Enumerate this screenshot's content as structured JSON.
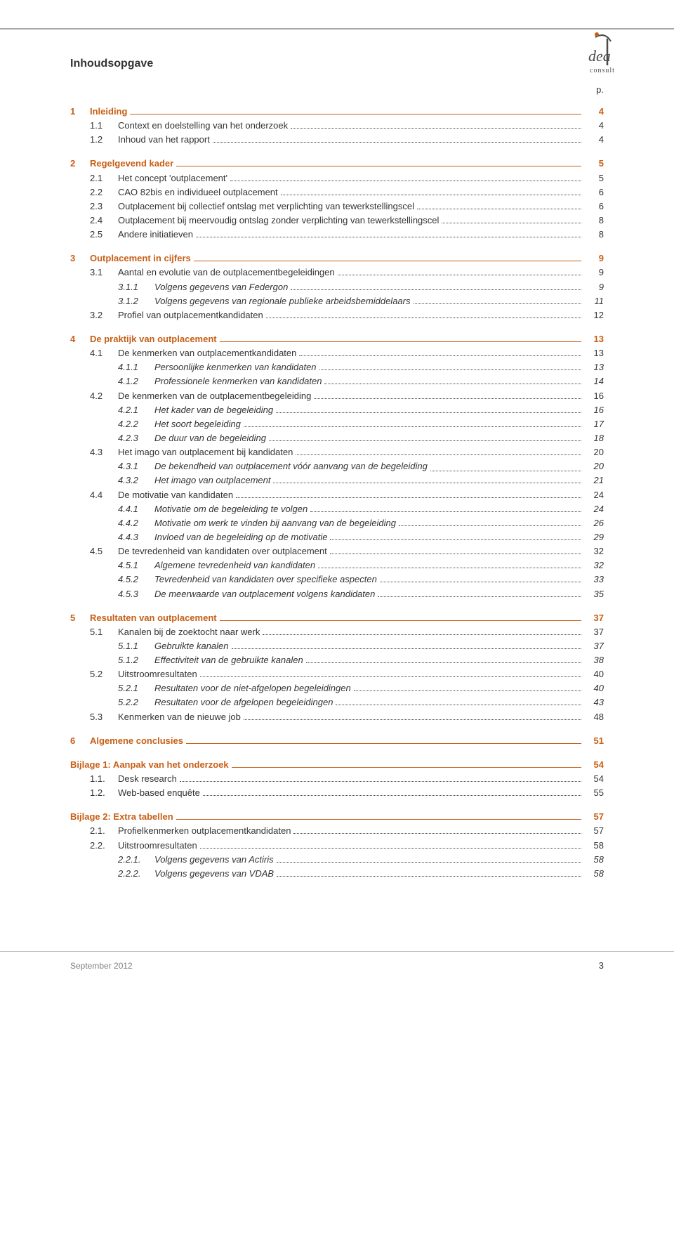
{
  "logo": {
    "brand_top": "dea",
    "brand_bottom": "consult"
  },
  "title": "Inhoudsopgave",
  "page_label": "p.",
  "colors": {
    "accent": "#c75f16",
    "text": "#333333",
    "footer_grey": "#808080",
    "rule_grey": "#a8a8a8"
  },
  "toc": [
    {
      "level": 1,
      "num": "1",
      "text": "Inleiding",
      "page": "4",
      "leader": "line"
    },
    {
      "level": 2,
      "num": "1.1",
      "text": "Context en doelstelling van het onderzoek",
      "page": "4"
    },
    {
      "level": 2,
      "num": "1.2",
      "text": "Inhoud van het rapport",
      "page": "4"
    },
    {
      "level": 1,
      "num": "2",
      "text": "Regelgevend kader",
      "page": "5",
      "leader": "line"
    },
    {
      "level": 2,
      "num": "2.1",
      "text": "Het concept 'outplacement'",
      "page": "5"
    },
    {
      "level": 2,
      "num": "2.2",
      "text": "CAO 82bis en individueel outplacement",
      "page": "6"
    },
    {
      "level": 2,
      "num": "2.3",
      "text": "Outplacement bij collectief ontslag met verplichting van tewerkstellingscel",
      "page": "6"
    },
    {
      "level": 2,
      "num": "2.4",
      "text": "Outplacement bij meervoudig ontslag zonder verplichting van tewerkstellingscel",
      "page": "8"
    },
    {
      "level": 2,
      "num": "2.5",
      "text": "Andere initiatieven",
      "page": "8"
    },
    {
      "level": 1,
      "num": "3",
      "text": "Outplacement in cijfers",
      "page": "9",
      "leader": "line"
    },
    {
      "level": 2,
      "num": "3.1",
      "text": "Aantal en evolutie van de outplacementbegeleidingen",
      "page": "9"
    },
    {
      "level": 3,
      "num": "3.1.1",
      "text": "Volgens gegevens van Federgon",
      "page": "9"
    },
    {
      "level": 3,
      "num": "3.1.2",
      "text": "Volgens gegevens van regionale publieke arbeidsbemiddelaars",
      "page": "11"
    },
    {
      "level": 2,
      "num": "3.2",
      "text": "Profiel van outplacementkandidaten",
      "page": "12"
    },
    {
      "level": 1,
      "num": "4",
      "text": "De praktijk van outplacement",
      "page": "13",
      "leader": "line"
    },
    {
      "level": 2,
      "num": "4.1",
      "text": "De kenmerken van outplacementkandidaten",
      "page": "13"
    },
    {
      "level": 3,
      "num": "4.1.1",
      "text": "Persoonlijke kenmerken van kandidaten",
      "page": "13"
    },
    {
      "level": 3,
      "num": "4.1.2",
      "text": "Professionele kenmerken van kandidaten",
      "page": "14"
    },
    {
      "level": 2,
      "num": "4.2",
      "text": "De kenmerken van de outplacementbegeleiding",
      "page": "16"
    },
    {
      "level": 3,
      "num": "4.2.1",
      "text": "Het kader van de begeleiding",
      "page": "16"
    },
    {
      "level": 3,
      "num": "4.2.2",
      "text": "Het soort begeleiding",
      "page": "17"
    },
    {
      "level": 3,
      "num": "4.2.3",
      "text": "De duur van de begeleiding",
      "page": "18"
    },
    {
      "level": 2,
      "num": "4.3",
      "text": "Het imago van outplacement bij kandidaten",
      "page": "20"
    },
    {
      "level": 3,
      "num": "4.3.1",
      "text": "De bekendheid van outplacement vóór aanvang van de begeleiding",
      "page": "20",
      "wrap": true
    },
    {
      "level": 3,
      "num": "4.3.2",
      "text": "Het imago van outplacement",
      "page": "21"
    },
    {
      "level": 2,
      "num": "4.4",
      "text": "De motivatie van kandidaten",
      "page": "24"
    },
    {
      "level": 3,
      "num": "4.4.1",
      "text": "Motivatie om de begeleiding te volgen",
      "page": "24"
    },
    {
      "level": 3,
      "num": "4.4.2",
      "text": "Motivatie om werk te vinden bij aanvang van de begeleiding",
      "page": "26"
    },
    {
      "level": 3,
      "num": "4.4.3",
      "text": "Invloed van de begeleiding op de motivatie",
      "page": "29"
    },
    {
      "level": 2,
      "num": "4.5",
      "text": "De tevredenheid van kandidaten over outplacement",
      "page": "32"
    },
    {
      "level": 3,
      "num": "4.5.1",
      "text": "Algemene tevredenheid van kandidaten",
      "page": "32"
    },
    {
      "level": 3,
      "num": "4.5.2",
      "text": "Tevredenheid van kandidaten over specifieke aspecten",
      "page": "33"
    },
    {
      "level": 3,
      "num": "4.5.3",
      "text": "De meerwaarde van outplacement volgens kandidaten",
      "page": "35"
    },
    {
      "level": 1,
      "num": "5",
      "text": "Resultaten van outplacement",
      "page": "37",
      "leader": "line"
    },
    {
      "level": 2,
      "num": "5.1",
      "text": "Kanalen bij de zoektocht naar werk",
      "page": "37"
    },
    {
      "level": 3,
      "num": "5.1.1",
      "text": "Gebruikte kanalen",
      "page": "37"
    },
    {
      "level": 3,
      "num": "5.1.2",
      "text": "Effectiviteit van de gebruikte kanalen",
      "page": "38"
    },
    {
      "level": 2,
      "num": "5.2",
      "text": "Uitstroomresultaten",
      "page": "40"
    },
    {
      "level": 3,
      "num": "5.2.1",
      "text": "Resultaten voor de niet-afgelopen begeleidingen",
      "page": "40"
    },
    {
      "level": 3,
      "num": "5.2.2",
      "text": "Resultaten voor de afgelopen begeleidingen",
      "page": "43"
    },
    {
      "level": 2,
      "num": "5.3",
      "text": "Kenmerken van de nieuwe job",
      "page": "48"
    },
    {
      "level": 1,
      "num": "6",
      "text": "Algemene conclusies",
      "page": "51",
      "leader": "line"
    },
    {
      "level": "b",
      "text": "Bijlage 1: Aanpak van het onderzoek",
      "page": "54",
      "leader": "line"
    },
    {
      "level": 2,
      "num": "1.1.",
      "text": "Desk research",
      "page": "54"
    },
    {
      "level": 2,
      "num": "1.2.",
      "text": "Web-based enquête",
      "page": "55"
    },
    {
      "level": "b",
      "text": "Bijlage 2: Extra tabellen",
      "page": "57",
      "leader": "line"
    },
    {
      "level": 2,
      "num": "2.1.",
      "text": "Profielkenmerken outplacementkandidaten",
      "page": "57"
    },
    {
      "level": 2,
      "num": "2.2.",
      "text": "Uitstroomresultaten",
      "page": "58"
    },
    {
      "level": 3,
      "num": "2.2.1.",
      "text": "Volgens gegevens van Actiris",
      "page": "58"
    },
    {
      "level": 3,
      "num": "2.2.2.",
      "text": "Volgens gegevens van VDAB",
      "page": "58"
    }
  ],
  "footer": {
    "left": "September 2012",
    "page_number": "3"
  }
}
